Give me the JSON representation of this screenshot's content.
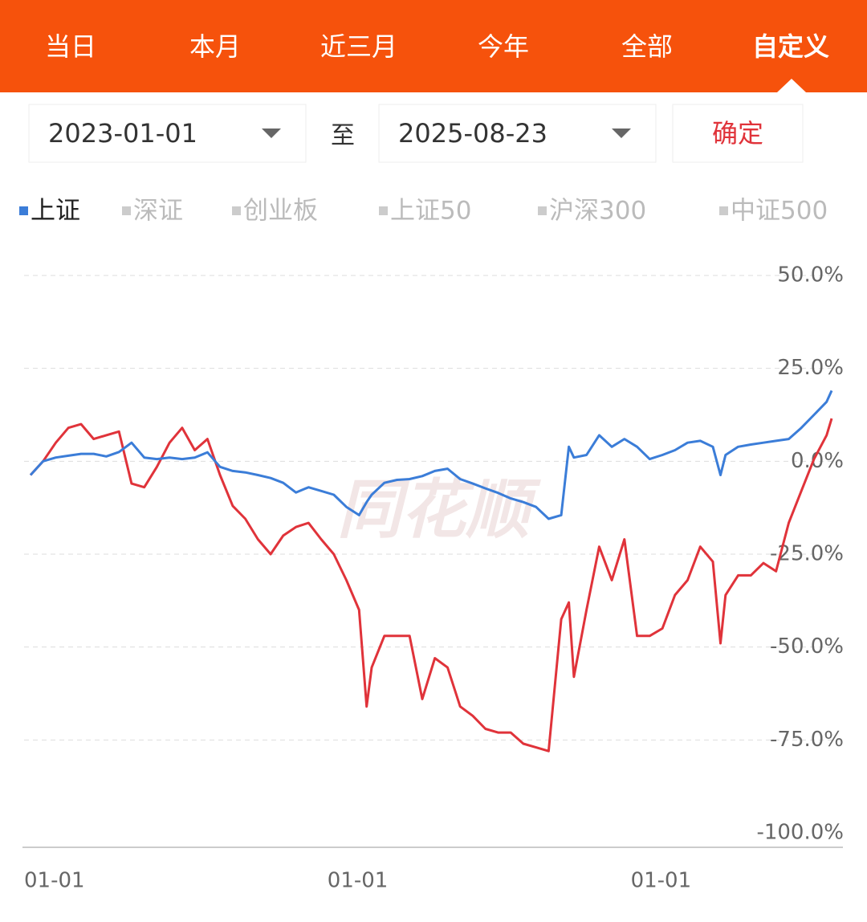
{
  "tabs": [
    "当日",
    "本月",
    "近三月",
    "今年",
    "全部",
    "自定义"
  ],
  "selected_tab": 5,
  "range": {
    "start": "2023-01-01",
    "separator": "至",
    "end": "2025-08-23",
    "confirm": "确定"
  },
  "legend": [
    {
      "label": "上证",
      "color": "#3b7dd8"
    },
    {
      "label": "深证",
      "color": "#cccccc"
    },
    {
      "label": "创业板",
      "color": "#cccccc"
    },
    {
      "label": "上证50",
      "color": "#cccccc"
    },
    {
      "label": "沪深300",
      "color": "#cccccc"
    },
    {
      "label": "中证500",
      "color": "#cccccc"
    }
  ],
  "watermark": "同花顺",
  "chart_data": {
    "type": "line",
    "x": [
      0,
      0.5,
      1,
      1.5,
      2,
      2.5,
      3,
      3.5,
      4,
      4.5,
      5,
      5.5,
      6,
      6.5,
      7,
      7.5,
      8,
      8.5,
      9,
      9.5,
      10,
      10.5,
      11,
      11.5,
      12,
      12.5,
      13,
      13.3,
      13.5,
      14,
      14.5,
      15,
      15.5,
      16,
      16.5,
      17,
      17.5,
      18,
      18.5,
      19,
      19.5,
      20,
      20.5,
      21,
      21.3,
      21.5,
      22,
      22.5,
      23,
      23.5,
      24,
      24.5,
      25,
      25.5,
      26,
      26.5,
      27,
      27.3,
      27.5,
      28,
      28.5,
      29,
      29.5,
      30,
      30.5,
      31,
      31.5,
      31.7
    ],
    "xlim": [
      0,
      31.7
    ],
    "xticks": [
      {
        "value": 0,
        "label": "01-01"
      },
      {
        "value": 12,
        "label": "01-01"
      },
      {
        "value": 24,
        "label": "01-01"
      }
    ],
    "ylim": [
      -100,
      50
    ],
    "yticks": [
      {
        "value": 50,
        "label": "50.0%"
      },
      {
        "value": 25,
        "label": "25.0%"
      },
      {
        "value": 0,
        "label": "0.0%"
      },
      {
        "value": -25,
        "label": "-25.0%"
      },
      {
        "value": -50,
        "label": "-50.0%"
      },
      {
        "value": -75,
        "label": "-75.0%"
      },
      {
        "value": -100,
        "label": "-100.0%"
      }
    ],
    "grid": true,
    "series": [
      {
        "name": "上证",
        "color": "#3b7dd8",
        "values": [
          -3.7,
          0,
          1,
          1.5,
          2,
          2,
          1.3,
          2.5,
          5,
          1,
          0.6,
          1,
          0.6,
          1,
          2.4,
          -1.5,
          -2.6,
          -3,
          -3.7,
          -4.5,
          -5.8,
          -8.4,
          -7,
          -8,
          -9,
          -12.3,
          -14.5,
          -11,
          -9,
          -5.8,
          -5,
          -4.8,
          -4,
          -2.6,
          -2,
          -4.8,
          -6,
          -7.3,
          -8.5,
          -10,
          -11,
          -12.3,
          -15.5,
          -14.5,
          3.9,
          1,
          1.7,
          7,
          3.9,
          6,
          3.9,
          0.6,
          1.7,
          3,
          5,
          5.5,
          3.9,
          -3.7,
          1.7,
          3.9,
          4.5,
          5,
          5.5,
          6,
          9,
          12.5,
          16,
          19
        ]
      },
      {
        "color": "#e0333a",
        "values": [
          -3.7,
          0,
          5,
          9,
          10,
          6,
          7,
          8,
          -6,
          -7,
          -1.5,
          5,
          9,
          3,
          6,
          -3.7,
          -12,
          -15.5,
          -21,
          -25,
          -20,
          -17.7,
          -16.6,
          -21,
          -25,
          -32,
          -40,
          -66,
          -55.5,
          -47,
          -47,
          -47,
          -64,
          -53,
          -55.5,
          -66,
          -68.5,
          -72,
          -73,
          -73,
          -76,
          -77,
          -78,
          -42.5,
          -38,
          -58,
          -40,
          -23,
          -32,
          -21,
          -47,
          -47,
          -45,
          -36,
          -32,
          -23,
          -27,
          -49,
          -36,
          -30.7,
          -30.7,
          -27.4,
          -29.6,
          -16.6,
          -8,
          0.6,
          7,
          11.5
        ]
      }
    ]
  }
}
